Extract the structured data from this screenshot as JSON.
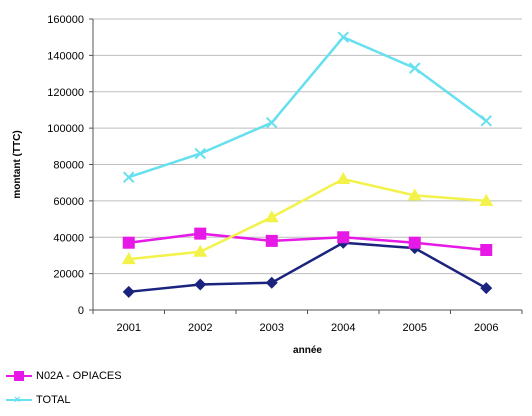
{
  "chart_data": {
    "type": "line",
    "xlabel": "année",
    "ylabel": "montant (TTC)",
    "categories": [
      "2001",
      "2002",
      "2003",
      "2004",
      "2005",
      "2006"
    ],
    "ylim": [
      0,
      160000
    ],
    "yticks": [
      0,
      20000,
      40000,
      60000,
      80000,
      100000,
      120000,
      140000,
      160000
    ],
    "grid": true,
    "legend_position": "bottom-left",
    "series": [
      {
        "name": "",
        "color": "#1a237e",
        "marker": "diamond",
        "values": [
          10000,
          14000,
          15000,
          37000,
          34000,
          12000
        ]
      },
      {
        "name": "N02A - OPIACES",
        "color": "#e619e6",
        "marker": "square",
        "values": [
          37000,
          42000,
          38000,
          40000,
          37000,
          33000
        ]
      },
      {
        "name": "",
        "color": "#f2f24a",
        "marker": "triangle",
        "values": [
          28000,
          32000,
          51000,
          72000,
          63000,
          60000
        ]
      },
      {
        "name": "TOTAL",
        "color": "#66e0ee",
        "marker": "x",
        "values": [
          73000,
          86000,
          103000,
          150000,
          133000,
          104000
        ]
      }
    ],
    "legend": [
      {
        "label": "N02A - OPIACES",
        "series_index": 1
      },
      {
        "label": "TOTAL",
        "series_index": 3
      }
    ]
  }
}
